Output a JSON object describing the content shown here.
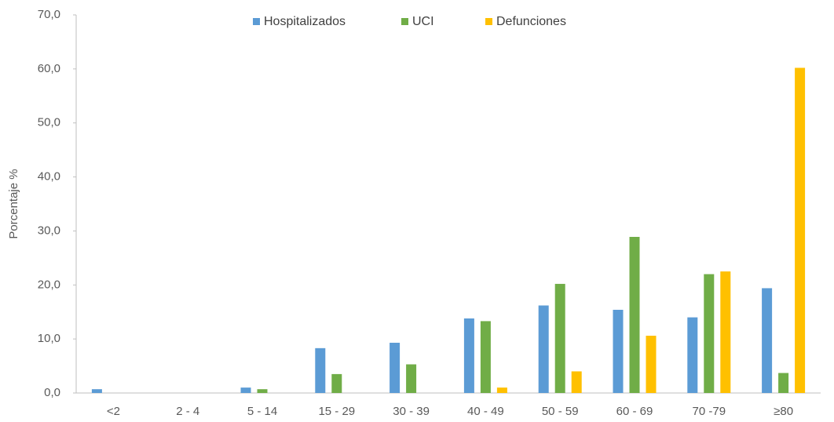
{
  "chart_data": {
    "type": "bar",
    "y_label": "Porcentaje %",
    "categories": [
      "<2",
      "2 - 4",
      "5 - 14",
      "15 - 29",
      "30 - 39",
      "40 - 49",
      "50 - 59",
      "60 - 69",
      "70 -79",
      "≥80"
    ],
    "series": [
      {
        "name": "Hospitalizados",
        "color": "#5b9bd5",
        "values": [
          0.7,
          0,
          1.0,
          8.3,
          9.3,
          13.8,
          16.2,
          15.4,
          14.0,
          19.4
        ]
      },
      {
        "name": "UCI",
        "color": "#70ad47",
        "values": [
          0,
          0,
          0.7,
          3.5,
          5.3,
          13.3,
          20.2,
          28.9,
          22.0,
          3.7
        ]
      },
      {
        "name": "Defunciones",
        "color": "#ffc000",
        "values": [
          0,
          0,
          0,
          0,
          0,
          1.0,
          4.0,
          10.6,
          22.5,
          60.2
        ]
      }
    ],
    "ylim": [
      0,
      70
    ],
    "yticks": [
      {
        "value": 0,
        "label": "0,0"
      },
      {
        "value": 10,
        "label": "10,0"
      },
      {
        "value": 20,
        "label": "20,0"
      },
      {
        "value": 30,
        "label": "30,0"
      },
      {
        "value": 40,
        "label": "40,0"
      },
      {
        "value": 50,
        "label": "50,0"
      },
      {
        "value": 60,
        "label": "60,0"
      },
      {
        "value": 70,
        "label": "70,0"
      }
    ],
    "grid": false,
    "legend": "top"
  }
}
